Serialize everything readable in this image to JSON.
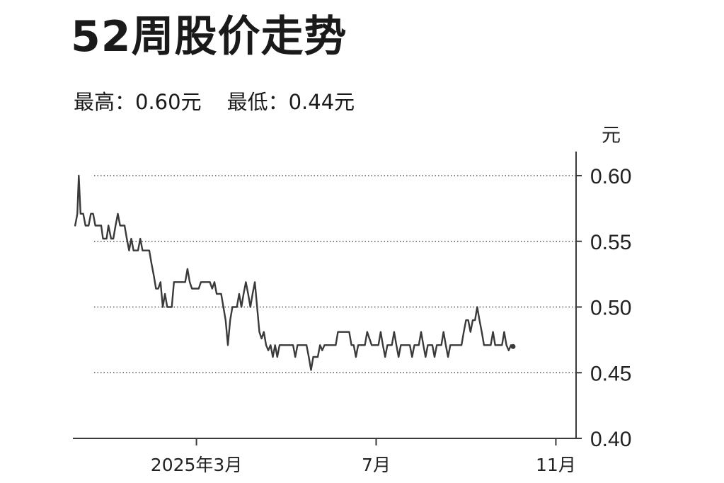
{
  "header": {
    "title": "52周股价走势",
    "high_label": "最高：0.60元",
    "low_label": "最低：0.44元"
  },
  "chart_data": {
    "type": "line",
    "title": "52周股价走势",
    "ylabel": "元",
    "ylim": [
      0.4,
      0.6
    ],
    "yticks": [
      "0.60",
      "0.55",
      "0.50",
      "0.45",
      "0.40"
    ],
    "gridlines": [
      0.6,
      0.55,
      0.5,
      0.45
    ],
    "xticks": [
      {
        "label": "2025年3月",
        "x": 1.0
      },
      {
        "label": "7月",
        "x": 5.0
      },
      {
        "label": "11月",
        "x": 9.0
      }
    ],
    "xlim": [
      -1.75,
      9.45
    ],
    "series": [
      {
        "values": [
          [
            -1.7,
            0.562
          ],
          [
            -1.65,
            0.571
          ],
          [
            -1.62,
            0.6
          ],
          [
            -1.58,
            0.571
          ],
          [
            -1.52,
            0.571
          ],
          [
            -1.47,
            0.562
          ],
          [
            -1.4,
            0.562
          ],
          [
            -1.35,
            0.571
          ],
          [
            -1.3,
            0.571
          ],
          [
            -1.25,
            0.562
          ],
          [
            -1.12,
            0.562
          ],
          [
            -1.08,
            0.552
          ],
          [
            -1.0,
            0.552
          ],
          [
            -0.96,
            0.562
          ],
          [
            -0.9,
            0.552
          ],
          [
            -0.85,
            0.552
          ],
          [
            -0.8,
            0.562
          ],
          [
            -0.75,
            0.571
          ],
          [
            -0.7,
            0.562
          ],
          [
            -0.6,
            0.562
          ],
          [
            -0.55,
            0.552
          ],
          [
            -0.5,
            0.543
          ],
          [
            -0.45,
            0.552
          ],
          [
            -0.4,
            0.543
          ],
          [
            -0.3,
            0.543
          ],
          [
            -0.25,
            0.552
          ],
          [
            -0.2,
            0.543
          ],
          [
            -0.05,
            0.543
          ],
          [
            0.0,
            0.533
          ],
          [
            0.05,
            0.524
          ],
          [
            0.1,
            0.514
          ],
          [
            0.15,
            0.514
          ],
          [
            0.2,
            0.519
          ],
          [
            0.25,
            0.5
          ],
          [
            0.3,
            0.51
          ],
          [
            0.35,
            0.5
          ],
          [
            0.45,
            0.5
          ],
          [
            0.5,
            0.519
          ],
          [
            0.75,
            0.519
          ],
          [
            0.8,
            0.529
          ],
          [
            0.85,
            0.519
          ],
          [
            0.9,
            0.514
          ],
          [
            1.05,
            0.514
          ],
          [
            1.1,
            0.519
          ],
          [
            1.3,
            0.519
          ],
          [
            1.35,
            0.514
          ],
          [
            1.4,
            0.519
          ],
          [
            1.45,
            0.51
          ],
          [
            1.55,
            0.51
          ],
          [
            1.65,
            0.49
          ],
          [
            1.7,
            0.471
          ],
          [
            1.75,
            0.49
          ],
          [
            1.8,
            0.5
          ],
          [
            1.9,
            0.5
          ],
          [
            1.95,
            0.51
          ],
          [
            2.0,
            0.5
          ],
          [
            2.05,
            0.51
          ],
          [
            2.1,
            0.519
          ],
          [
            2.15,
            0.51
          ],
          [
            2.2,
            0.5
          ],
          [
            2.25,
            0.51
          ],
          [
            2.3,
            0.519
          ],
          [
            2.35,
            0.5
          ],
          [
            2.4,
            0.481
          ],
          [
            2.45,
            0.476
          ],
          [
            2.5,
            0.481
          ],
          [
            2.55,
            0.471
          ],
          [
            2.6,
            0.467
          ],
          [
            2.65,
            0.471
          ],
          [
            2.7,
            0.462
          ],
          [
            2.75,
            0.471
          ],
          [
            2.8,
            0.462
          ],
          [
            2.85,
            0.471
          ],
          [
            3.15,
            0.471
          ],
          [
            3.2,
            0.462
          ],
          [
            3.25,
            0.471
          ],
          [
            3.45,
            0.471
          ],
          [
            3.5,
            0.462
          ],
          [
            3.55,
            0.452
          ],
          [
            3.6,
            0.462
          ],
          [
            3.7,
            0.462
          ],
          [
            3.75,
            0.471
          ],
          [
            3.8,
            0.467
          ],
          [
            3.85,
            0.471
          ],
          [
            4.1,
            0.471
          ],
          [
            4.15,
            0.481
          ],
          [
            4.4,
            0.481
          ],
          [
            4.45,
            0.471
          ],
          [
            4.5,
            0.471
          ],
          [
            4.55,
            0.462
          ],
          [
            4.6,
            0.471
          ],
          [
            4.75,
            0.471
          ],
          [
            4.8,
            0.481
          ],
          [
            4.9,
            0.471
          ],
          [
            5.05,
            0.471
          ],
          [
            5.1,
            0.481
          ],
          [
            5.15,
            0.471
          ],
          [
            5.2,
            0.462
          ],
          [
            5.25,
            0.471
          ],
          [
            5.35,
            0.471
          ],
          [
            5.4,
            0.481
          ],
          [
            5.45,
            0.471
          ],
          [
            5.5,
            0.462
          ],
          [
            5.55,
            0.471
          ],
          [
            5.75,
            0.471
          ],
          [
            5.8,
            0.462
          ],
          [
            5.85,
            0.471
          ],
          [
            5.95,
            0.471
          ],
          [
            6.0,
            0.481
          ],
          [
            6.05,
            0.471
          ],
          [
            6.1,
            0.462
          ],
          [
            6.15,
            0.471
          ],
          [
            6.25,
            0.471
          ],
          [
            6.3,
            0.462
          ],
          [
            6.35,
            0.471
          ],
          [
            6.45,
            0.471
          ],
          [
            6.5,
            0.481
          ],
          [
            6.55,
            0.471
          ],
          [
            6.6,
            0.462
          ],
          [
            6.65,
            0.471
          ],
          [
            6.9,
            0.471
          ],
          [
            6.95,
            0.481
          ],
          [
            7.0,
            0.49
          ],
          [
            7.05,
            0.49
          ],
          [
            7.1,
            0.481
          ],
          [
            7.15,
            0.49
          ],
          [
            7.2,
            0.49
          ],
          [
            7.25,
            0.5
          ],
          [
            7.3,
            0.49
          ],
          [
            7.35,
            0.481
          ],
          [
            7.4,
            0.471
          ],
          [
            7.55,
            0.471
          ],
          [
            7.6,
            0.481
          ],
          [
            7.65,
            0.471
          ],
          [
            7.8,
            0.471
          ],
          [
            7.85,
            0.481
          ],
          [
            7.9,
            0.471
          ],
          [
            7.95,
            0.467
          ],
          [
            8.0,
            0.471
          ]
        ]
      }
    ]
  },
  "colors": {
    "line": "#3a3a3a",
    "grid": "#555555",
    "axis": "#3a3a3a",
    "text": "#1a1a1a"
  }
}
